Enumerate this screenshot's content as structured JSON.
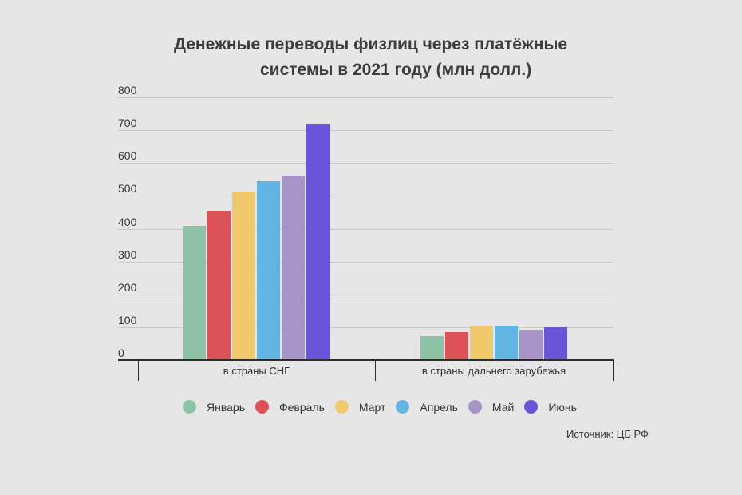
{
  "title": {
    "line1": "Денежные переводы физлиц через платёжные",
    "line2": "системы в 2021 году (млн долл.)"
  },
  "source": "Источник: ЦБ РФ",
  "colors": {
    "background": "#e6e6e6",
    "Январь": "#8cc2a6",
    "Февраль": "#dd5257",
    "Март": "#f0c96c",
    "Апрель": "#62b5e2",
    "Май": "#a893c6",
    "Июнь": "#6a55d8"
  },
  "chart_data": {
    "type": "bar",
    "title": "Денежные переводы физлиц через платёжные системы в 2021 году (млн долл.)",
    "xlabel": "",
    "ylabel": "",
    "ylim": [
      0,
      800
    ],
    "yticks": [
      0,
      100,
      200,
      300,
      400,
      500,
      600,
      700,
      800
    ],
    "grid": true,
    "legend_position": "bottom",
    "categories": [
      "в страны СНГ",
      "в страны дальнего зарубежья"
    ],
    "series": [
      {
        "name": "Январь",
        "color": "#8cc2a6",
        "values": [
          409,
          73
        ]
      },
      {
        "name": "Февраль",
        "color": "#dd5257",
        "values": [
          455,
          85
        ]
      },
      {
        "name": "Март",
        "color": "#f0c96c",
        "values": [
          513,
          104
        ]
      },
      {
        "name": "Апрель",
        "color": "#62b5e2",
        "values": [
          545,
          105
        ]
      },
      {
        "name": "Май",
        "color": "#a893c6",
        "values": [
          562,
          92
        ]
      },
      {
        "name": "Июнь",
        "color": "#6a55d8",
        "values": [
          720,
          100
        ]
      }
    ],
    "annotations": [
      "Источник: ЦБ РФ"
    ]
  }
}
